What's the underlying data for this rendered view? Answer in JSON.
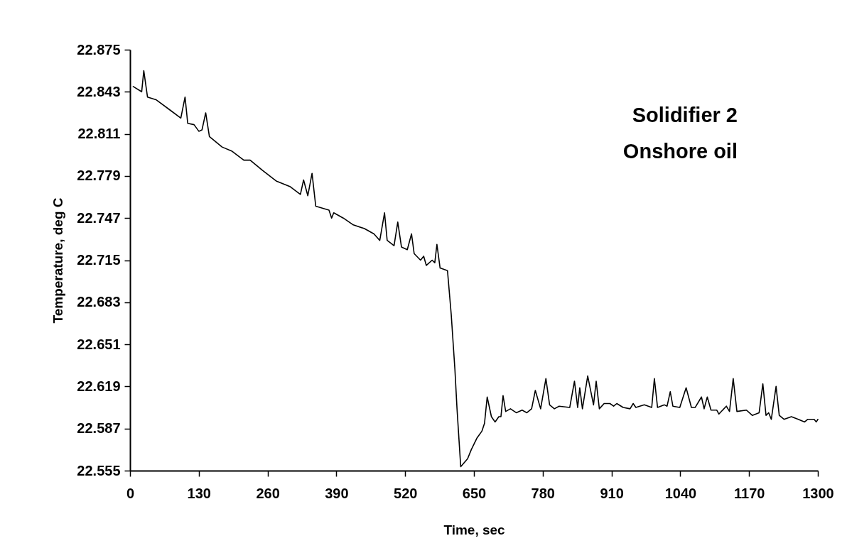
{
  "chart_data": {
    "type": "line",
    "xlabel": "Time, sec",
    "ylabel": "Temperature, deg C",
    "annotations": [
      "Solidifier 2",
      "Onshore oil"
    ],
    "xlim": [
      0,
      1300
    ],
    "xticks": [
      0,
      130,
      260,
      390,
      520,
      650,
      780,
      910,
      1040,
      1170,
      1300
    ],
    "ylim": [
      22.555,
      22.875
    ],
    "yticks": [
      22.555,
      22.587,
      22.619,
      22.651,
      22.683,
      22.715,
      22.747,
      22.779,
      22.811,
      22.843,
      22.875
    ],
    "grid": false,
    "marker": "none",
    "line_style": "solid",
    "series": [
      {
        "color": "#000000",
        "x": [
          6,
          22,
          26,
          33,
          49,
          76,
          96,
          104,
          109,
          121,
          130,
          136,
          143,
          150,
          174,
          192,
          215,
          227,
          251,
          277,
          302,
          322,
          328,
          336,
          344,
          351,
          376,
          381,
          385,
          403,
          421,
          443,
          461,
          472,
          481,
          486,
          499,
          506,
          513,
          524,
          532,
          537,
          549,
          555,
          560,
          571,
          576,
          580,
          586,
          600,
          607,
          614,
          618,
          625,
          638,
          645,
          656,
          665,
          670,
          675,
          683,
          690,
          697,
          701,
          705,
          710,
          719,
          730,
          741,
          750,
          759,
          766,
          776,
          786,
          793,
          802,
          811,
          831,
          840,
          846,
          850,
          855,
          865,
          876,
          881,
          887,
          896,
          907,
          914,
          920,
          932,
          945,
          951,
          956,
          972,
          986,
          991,
          997,
          1010,
          1015,
          1021,
          1026,
          1039,
          1051,
          1061,
          1068,
          1080,
          1085,
          1091,
          1098,
          1109,
          1113,
          1127,
          1133,
          1140,
          1147,
          1165,
          1176,
          1189,
          1196,
          1202,
          1207,
          1212,
          1221,
          1227,
          1236,
          1250,
          1263,
          1275,
          1281,
          1293,
          1297,
          1300
        ],
        "values": [
          22.847,
          22.843,
          22.859,
          22.839,
          22.837,
          22.829,
          22.823,
          22.839,
          22.819,
          22.818,
          22.813,
          22.814,
          22.827,
          22.809,
          22.801,
          22.798,
          22.791,
          22.791,
          22.783,
          22.775,
          22.771,
          22.765,
          22.776,
          22.764,
          22.781,
          22.756,
          22.753,
          22.747,
          22.751,
          22.747,
          22.742,
          22.739,
          22.735,
          22.73,
          22.751,
          22.73,
          22.726,
          22.744,
          22.725,
          22.723,
          22.735,
          22.72,
          22.715,
          22.718,
          22.711,
          22.715,
          22.713,
          22.727,
          22.709,
          22.707,
          22.674,
          22.632,
          22.602,
          22.558,
          22.564,
          22.571,
          22.58,
          22.585,
          22.591,
          22.611,
          22.596,
          22.592,
          22.596,
          22.596,
          22.612,
          22.6,
          22.602,
          22.599,
          22.601,
          22.599,
          22.602,
          22.616,
          22.602,
          22.625,
          22.605,
          22.602,
          22.604,
          22.603,
          22.623,
          22.603,
          22.618,
          22.602,
          22.627,
          22.605,
          22.623,
          22.602,
          22.606,
          22.606,
          22.604,
          22.606,
          22.603,
          22.602,
          22.606,
          22.603,
          22.605,
          22.603,
          22.625,
          22.603,
          22.605,
          22.604,
          22.615,
          22.604,
          22.603,
          22.618,
          22.603,
          22.603,
          22.611,
          22.602,
          22.611,
          22.601,
          22.601,
          22.598,
          22.604,
          22.6,
          22.625,
          22.6,
          22.601,
          22.597,
          22.599,
          22.621,
          22.597,
          22.599,
          22.594,
          22.619,
          22.597,
          22.594,
          22.596,
          22.594,
          22.592,
          22.594,
          22.594,
          22.592,
          22.594
        ]
      }
    ]
  }
}
